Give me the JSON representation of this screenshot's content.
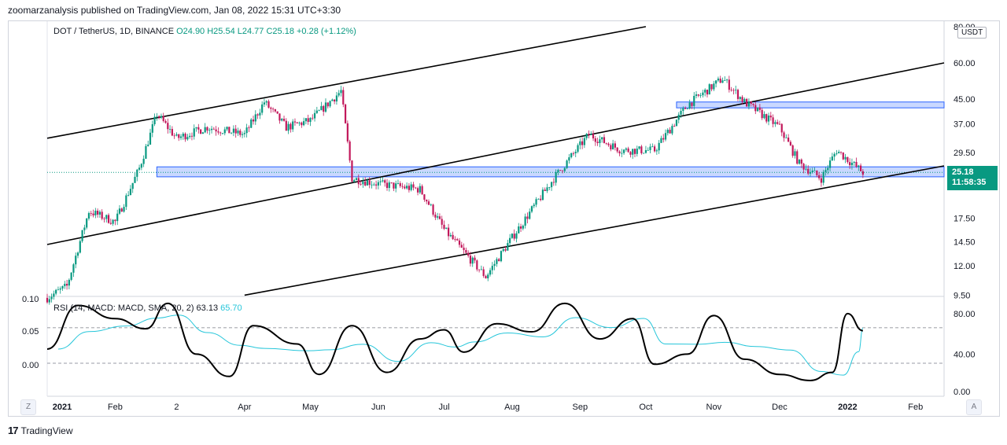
{
  "header": {
    "publisher_line": "zoomarzanalysis published on TradingView.com, Jan 08, 2022 15:31 UTC+3:30"
  },
  "legend": {
    "symbol": "DOT / TetherUS, 1D, BINANCE",
    "ohlc": "O24.90  H25.54  L24.77  C25.18  +0.28 (+1.12%)"
  },
  "rsi_legend": {
    "label": "RSI (14, MACD: MACD, SMA, 20, 2)",
    "value1": "63.13",
    "value2": "65.70"
  },
  "currency_button": "USDT",
  "price_tag": {
    "price": "25.18",
    "countdown": "11:58:35"
  },
  "buttons": {
    "zoom": "Z",
    "auto": "A"
  },
  "footer": {
    "brand": "TradingView"
  },
  "colors": {
    "up": "#089981",
    "down": "#c2185b",
    "channel": "#000000",
    "zone": "#2962ff",
    "rsi_line": "#000000",
    "rsi_ma": "#26c6da"
  },
  "chart_data": [
    {
      "type": "candlestick",
      "title": "DOT / TetherUS, 1D, BINANCE",
      "y_scale": "log",
      "y_ticks": [
        "80.00",
        "60.00",
        "45.00",
        "37.00",
        "29.50",
        "17.50",
        "14.50",
        "12.00",
        "9.50"
      ],
      "x_ticks": [
        "2021",
        "Feb",
        "2",
        "Apr",
        "May",
        "Jun",
        "Jul",
        "Aug",
        "Sep",
        "Oct",
        "Nov",
        "Dec",
        "2022",
        "Feb"
      ],
      "approx_close_path": [
        {
          "date": "2021-01-01",
          "price": 9.3
        },
        {
          "date": "2021-01-10",
          "price": 10.2
        },
        {
          "date": "2021-01-20",
          "price": 18.5
        },
        {
          "date": "2021-02-01",
          "price": 17.0
        },
        {
          "date": "2021-02-12",
          "price": 26.0
        },
        {
          "date": "2021-02-20",
          "price": 40.0
        },
        {
          "date": "2021-03-01",
          "price": 33.0
        },
        {
          "date": "2021-03-15",
          "price": 36.0
        },
        {
          "date": "2021-04-01",
          "price": 34.0
        },
        {
          "date": "2021-04-10",
          "price": 44.0
        },
        {
          "date": "2021-04-20",
          "price": 36.0
        },
        {
          "date": "2021-05-01",
          "price": 38.0
        },
        {
          "date": "2021-05-15",
          "price": 48.0
        },
        {
          "date": "2021-05-20",
          "price": 24.0
        },
        {
          "date": "2021-06-01",
          "price": 23.0
        },
        {
          "date": "2021-06-20",
          "price": 22.0
        },
        {
          "date": "2021-07-01",
          "price": 16.0
        },
        {
          "date": "2021-07-20",
          "price": 11.0
        },
        {
          "date": "2021-08-01",
          "price": 15.0
        },
        {
          "date": "2021-08-20",
          "price": 24.0
        },
        {
          "date": "2021-09-05",
          "price": 34.0
        },
        {
          "date": "2021-09-20",
          "price": 30.0
        },
        {
          "date": "2021-10-05",
          "price": 30.0
        },
        {
          "date": "2021-10-20",
          "price": 43.0
        },
        {
          "date": "2021-11-05",
          "price": 53.0
        },
        {
          "date": "2021-11-15",
          "price": 44.0
        },
        {
          "date": "2021-12-01",
          "price": 36.0
        },
        {
          "date": "2021-12-10",
          "price": 27.0
        },
        {
          "date": "2021-12-20",
          "price": 24.0
        },
        {
          "date": "2021-12-27",
          "price": 30.0
        },
        {
          "date": "2022-01-08",
          "price": 25.18
        }
      ],
      "channel_lines": 3,
      "support_zone": {
        "low": 24.3,
        "high": 26.3
      },
      "resistance_zone": {
        "low": 42.0,
        "high": 44.0
      }
    },
    {
      "type": "line",
      "title": "RSI (14, MACD: MACD, SMA, 20, 2)",
      "y_ticks_left": [
        "0.10",
        "0.05",
        "0.00"
      ],
      "y_ticks_right": [
        "80.00",
        "40.00",
        "0.00"
      ],
      "approx_path": [
        {
          "date": "2021-01-01",
          "rsi": 45
        },
        {
          "date": "2021-01-15",
          "rsi": 88
        },
        {
          "date": "2021-02-01",
          "rsi": 75
        },
        {
          "date": "2021-02-15",
          "rsi": 65
        },
        {
          "date": "2021-02-25",
          "rsi": 90
        },
        {
          "date": "2021-03-10",
          "rsi": 40
        },
        {
          "date": "2021-03-25",
          "rsi": 18
        },
        {
          "date": "2021-04-05",
          "rsi": 68
        },
        {
          "date": "2021-04-25",
          "rsi": 50
        },
        {
          "date": "2021-05-05",
          "rsi": 20
        },
        {
          "date": "2021-05-20",
          "rsi": 68
        },
        {
          "date": "2021-06-05",
          "rsi": 22
        },
        {
          "date": "2021-06-20",
          "rsi": 55
        },
        {
          "date": "2021-07-01",
          "rsi": 64
        },
        {
          "date": "2021-07-10",
          "rsi": 42
        },
        {
          "date": "2021-07-25",
          "rsi": 70
        },
        {
          "date": "2021-08-10",
          "rsi": 62
        },
        {
          "date": "2021-08-25",
          "rsi": 90
        },
        {
          "date": "2021-09-10",
          "rsi": 55
        },
        {
          "date": "2021-09-25",
          "rsi": 75
        },
        {
          "date": "2021-10-05",
          "rsi": 30
        },
        {
          "date": "2021-10-20",
          "rsi": 40
        },
        {
          "date": "2021-11-01",
          "rsi": 78
        },
        {
          "date": "2021-11-15",
          "rsi": 35
        },
        {
          "date": "2021-12-01",
          "rsi": 20
        },
        {
          "date": "2021-12-15",
          "rsi": 14
        },
        {
          "date": "2021-12-25",
          "rsi": 22
        },
        {
          "date": "2022-01-01",
          "rsi": 80
        },
        {
          "date": "2022-01-08",
          "rsi": 63.13
        }
      ],
      "ma_latest": 65.7
    }
  ]
}
